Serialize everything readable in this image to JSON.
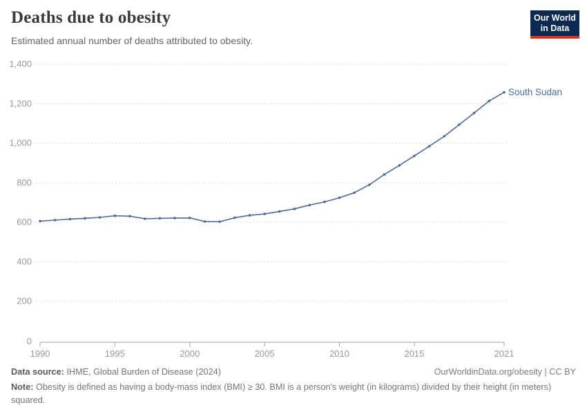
{
  "header": {
    "title": "Deaths due to obesity",
    "subtitle": "Estimated annual number of deaths attributed to obesity.",
    "logo": {
      "line1": "Our World",
      "line2": "in Data"
    }
  },
  "chart_data": {
    "type": "line",
    "title": "Deaths due to obesity",
    "subtitle": "Estimated annual number of deaths attributed to obesity.",
    "entity_label": "South Sudan",
    "x": [
      1990,
      1991,
      1992,
      1993,
      1994,
      1995,
      1996,
      1997,
      1998,
      1999,
      2000,
      2001,
      2002,
      2003,
      2004,
      2005,
      2006,
      2007,
      2008,
      2009,
      2010,
      2011,
      2012,
      2013,
      2014,
      2015,
      2016,
      2017,
      2018,
      2019,
      2020,
      2021
    ],
    "series": [
      {
        "name": "South Sudan",
        "color": "#4C6A9E",
        "values": [
          606,
          611,
          616,
          620,
          625,
          633,
          631,
          618,
          620,
          621,
          622,
          604,
          603,
          623,
          635,
          642,
          655,
          668,
          687,
          703,
          724,
          750,
          790,
          842,
          888,
          936,
          985,
          1035,
          1094,
          1153,
          1214,
          1258
        ]
      }
    ],
    "xlim": [
      1990,
      2021
    ],
    "ylim": [
      0,
      1400
    ],
    "xticks": [
      1990,
      1995,
      2000,
      2005,
      2010,
      2015,
      2021
    ],
    "yticks": [
      0,
      200,
      400,
      600,
      800,
      1000,
      1200,
      1400
    ],
    "ytick_labels": [
      "0",
      "200",
      "400",
      "600",
      "800",
      "1,000",
      "1,200",
      "1,400"
    ],
    "grid": "horizontal-dashed",
    "legend_position": "end-of-line-label",
    "markers": "point-per-year"
  },
  "colors": {
    "line": "#4C6A9E",
    "grid": "#d9d9d9",
    "axis": "#a5a5a5",
    "tick_text": "#999999",
    "logo_bg": "#0a2a51",
    "logo_underline": "#dc2e22",
    "title_text": "#383a3c"
  },
  "footer": {
    "source_label": "Data source:",
    "source_value": " IHME, Global Burden of Disease (2024)",
    "link": "OurWorldinData.org/obesity | CC BY",
    "note_label": "Note:",
    "note_value": " Obesity is defined as having a body-mass index (BMI) ≥ 30. BMI is a person's weight (in kilograms) divided by their height (in meters) squared."
  }
}
